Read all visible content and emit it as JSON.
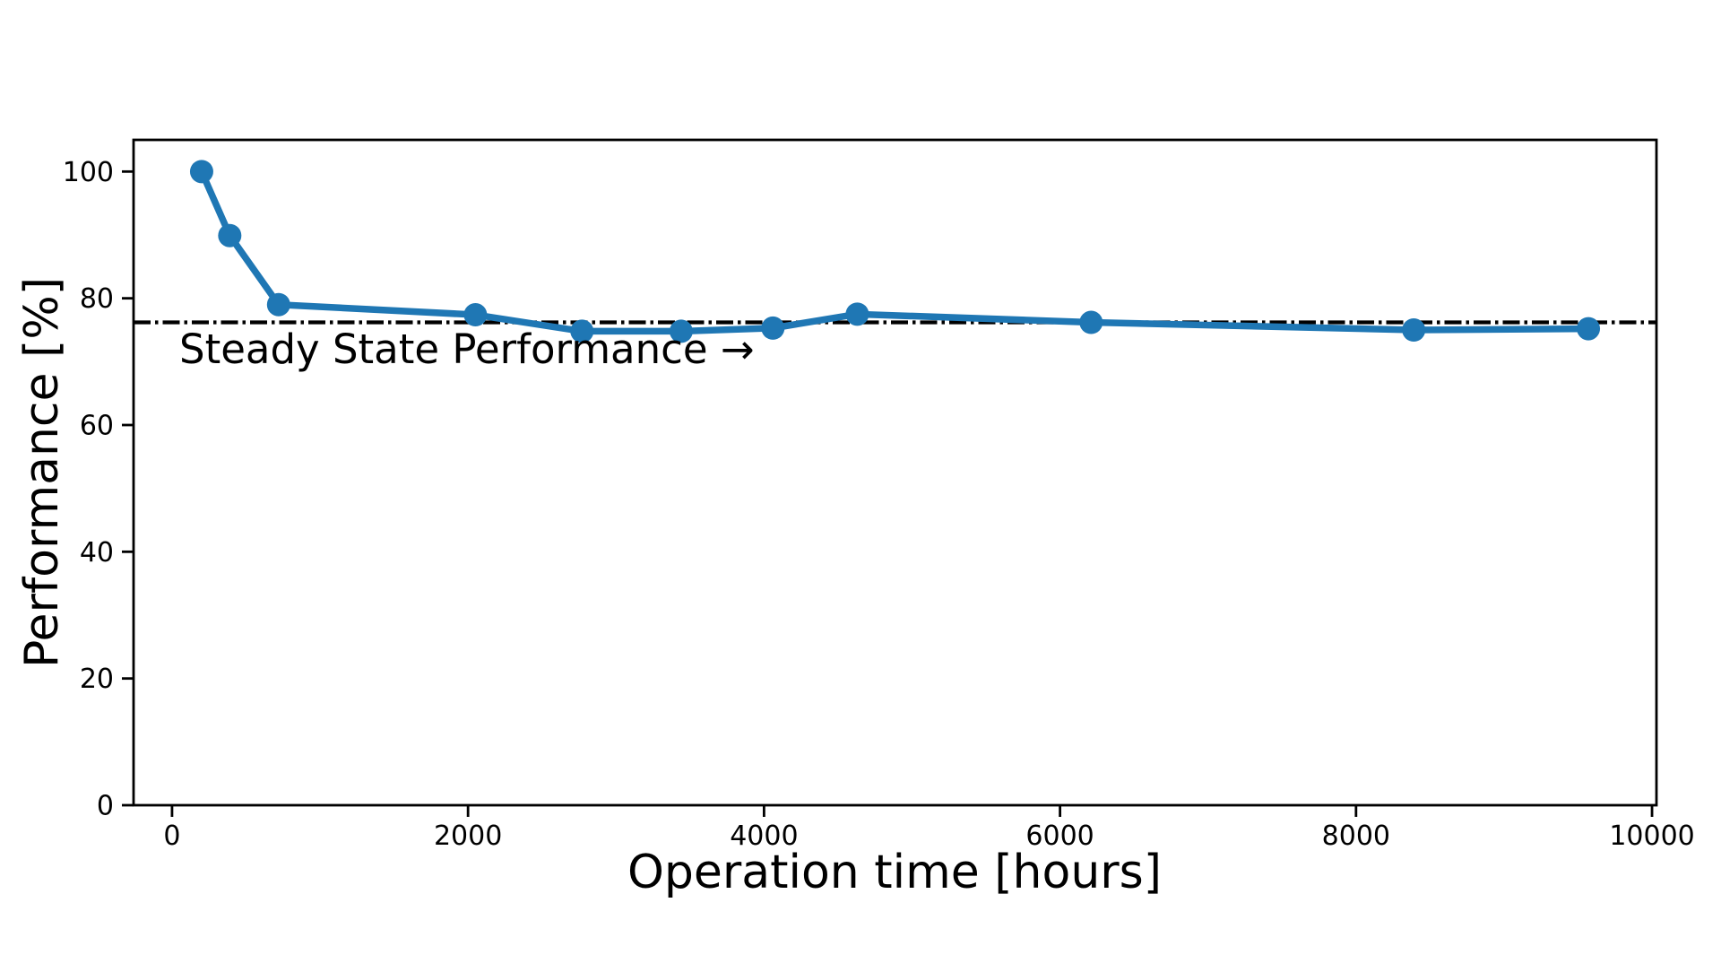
{
  "figure": {
    "background": "#ffffff",
    "frame_color": "#000000"
  },
  "chart_data": {
    "type": "line",
    "title": "",
    "xlabel": "Operation time [hours]",
    "ylabel": "Performance [%]",
    "x_ticks": [
      0,
      2000,
      4000,
      6000,
      8000,
      10000
    ],
    "y_ticks": [
      0,
      20,
      40,
      60,
      80,
      100
    ],
    "xlim": [
      -260,
      10030
    ],
    "ylim": [
      0,
      105
    ],
    "grid": false,
    "legend": "none",
    "series": [
      {
        "name": "Performance",
        "color": "#1f77b4",
        "marker": "circle",
        "x": [
          200,
          390,
          720,
          2050,
          2770,
          3440,
          4060,
          4630,
          6210,
          8390,
          9570
        ],
        "y": [
          100,
          89.9,
          79,
          77.4,
          74.8,
          74.8,
          75.3,
          77.5,
          76.2,
          75,
          75.2
        ]
      }
    ],
    "reference_line": {
      "orientation": "horizontal",
      "value": 76.2,
      "style": "dash-dot",
      "color": "#000000",
      "label": "Steady State Performance →"
    }
  }
}
